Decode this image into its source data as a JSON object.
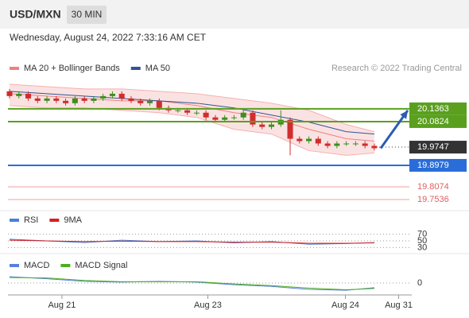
{
  "header": {
    "symbol": "USD/MXN",
    "interval": "30 MIN",
    "timestamp": "Wednesday, August 24, 2022 7:33:16 AM CET",
    "credit": "Research © 2022 Trading Central"
  },
  "chart_data": [
    {
      "type": "candlestick",
      "up_color": "#3d8f1f",
      "down_color": "#d12d2d",
      "open": [
        20.21,
        20.19,
        20.2,
        20.18,
        20.17,
        20.18,
        20.17,
        20.16,
        20.18,
        20.17,
        20.18,
        20.19,
        20.2,
        20.18,
        20.17,
        20.16,
        20.17,
        20.14,
        20.13,
        20.13,
        20.12,
        20.12,
        20.1,
        20.09,
        20.1,
        20.1,
        20.12,
        20.07,
        20.06,
        20.07,
        20.09,
        20.01,
        20.0,
        20.01,
        19.99,
        19.98,
        19.99,
        19.99,
        19.99,
        19.98
      ],
      "high": [
        20.22,
        20.21,
        20.21,
        20.19,
        20.19,
        20.19,
        20.18,
        20.19,
        20.19,
        20.19,
        20.2,
        20.21,
        20.21,
        20.19,
        20.18,
        20.18,
        20.18,
        20.15,
        20.14,
        20.14,
        20.13,
        20.13,
        20.11,
        20.11,
        20.11,
        20.13,
        20.13,
        20.08,
        20.08,
        20.13,
        20.1,
        20.02,
        20.02,
        20.02,
        20.0,
        20.0,
        20.0,
        20.0,
        20.0,
        19.99
      ],
      "low": [
        20.18,
        20.18,
        20.17,
        20.16,
        20.16,
        20.16,
        20.15,
        20.15,
        20.16,
        20.16,
        20.17,
        20.18,
        20.17,
        20.16,
        20.15,
        20.15,
        20.13,
        20.12,
        20.12,
        20.11,
        20.11,
        20.09,
        20.08,
        20.08,
        20.09,
        20.09,
        20.06,
        20.05,
        20.05,
        20.06,
        19.94,
        19.99,
        19.99,
        19.98,
        19.97,
        19.97,
        19.98,
        19.98,
        19.97,
        19.96
      ],
      "close": [
        20.19,
        20.2,
        20.18,
        20.17,
        20.18,
        20.17,
        20.16,
        20.18,
        20.17,
        20.18,
        20.19,
        20.2,
        20.18,
        20.17,
        20.16,
        20.17,
        20.14,
        20.13,
        20.13,
        20.12,
        20.12,
        20.1,
        20.09,
        20.1,
        20.1,
        20.12,
        20.07,
        20.06,
        20.07,
        20.09,
        20.01,
        20.0,
        20.01,
        19.99,
        19.98,
        19.99,
        19.99,
        19.99,
        19.98,
        19.97
      ],
      "indicator_x": [
        0,
        4,
        8,
        12,
        16,
        20,
        24,
        28,
        32,
        36,
        39
      ],
      "series": [
        {
          "name": "MA 20 + Bollinger Bands",
          "color": "#f08080",
          "values": [
            20.2,
            20.19,
            20.18,
            20.17,
            20.17,
            20.15,
            20.12,
            20.1,
            20.05,
            20.01,
            20.0
          ],
          "upper": [
            20.24,
            20.23,
            20.22,
            20.22,
            20.21,
            20.2,
            20.18,
            20.16,
            20.13,
            20.07,
            20.04
          ],
          "lower": [
            20.15,
            20.14,
            20.14,
            20.13,
            20.12,
            20.1,
            20.05,
            20.03,
            19.96,
            19.94,
            19.95
          ]
        },
        {
          "name": "MA 50",
          "color": "#2f5597",
          "values": [
            20.21,
            20.2,
            20.19,
            20.18,
            20.17,
            20.16,
            20.14,
            20.11,
            20.08,
            20.04,
            20.03
          ]
        }
      ],
      "levels": [
        {
          "value": 20.1363,
          "color": "#5aa01e",
          "style": "box"
        },
        {
          "value": 20.0824,
          "color": "#5aa01e",
          "style": "box"
        },
        {
          "value": 19.9747,
          "color": "#333333",
          "style": "current"
        },
        {
          "value": 19.8979,
          "color": "#2a6dd9",
          "style": "box"
        },
        {
          "value": 19.8074,
          "color": "#e06060",
          "style": "text"
        },
        {
          "value": 19.7536,
          "color": "#e06060",
          "style": "text"
        }
      ],
      "xlim": [
        0,
        43
      ],
      "ylim": [
        19.72,
        20.26
      ]
    },
    {
      "type": "line",
      "x": [
        0,
        4,
        8,
        12,
        16,
        20,
        24,
        28,
        32,
        36,
        39
      ],
      "series": [
        {
          "name": "RSI",
          "color": "#4a7fd8",
          "values": [
            55,
            50,
            45,
            52,
            48,
            50,
            44,
            48,
            40,
            42,
            45
          ]
        },
        {
          "name": "9MA",
          "color": "#d62020",
          "values": [
            52,
            50,
            48,
            49,
            48,
            48,
            46,
            46,
            43,
            43,
            44
          ]
        }
      ],
      "xlim": [
        0,
        43
      ],
      "ylim": [
        0,
        100
      ],
      "yticks": [
        30,
        50,
        70
      ]
    },
    {
      "type": "line",
      "x": [
        0,
        4,
        8,
        12,
        16,
        20,
        24,
        28,
        32,
        36,
        39
      ],
      "series": [
        {
          "name": "MACD",
          "color": "#5b7fe0",
          "values": [
            0.015,
            0.01,
            0.004,
            0.002,
            0.004,
            0.002,
            -0.004,
            -0.008,
            -0.015,
            -0.017,
            -0.011
          ]
        },
        {
          "name": "MACD Signal",
          "color": "#4caf1e",
          "values": [
            0.013,
            0.012,
            0.006,
            0.003,
            0.003,
            0.003,
            -0.002,
            -0.006,
            -0.012,
            -0.016,
            -0.013
          ]
        }
      ],
      "xlim": [
        0,
        43
      ],
      "ylim": [
        -0.03,
        0.03
      ],
      "yticks": [
        0
      ],
      "xticks": [
        {
          "value": 5.6,
          "label": "Aug 21"
        },
        {
          "value": 21.2,
          "label": "Aug 23"
        },
        {
          "value": 35.9,
          "label": "Aug 24"
        },
        {
          "value": 41.6,
          "label": "Aug 31"
        }
      ]
    }
  ]
}
